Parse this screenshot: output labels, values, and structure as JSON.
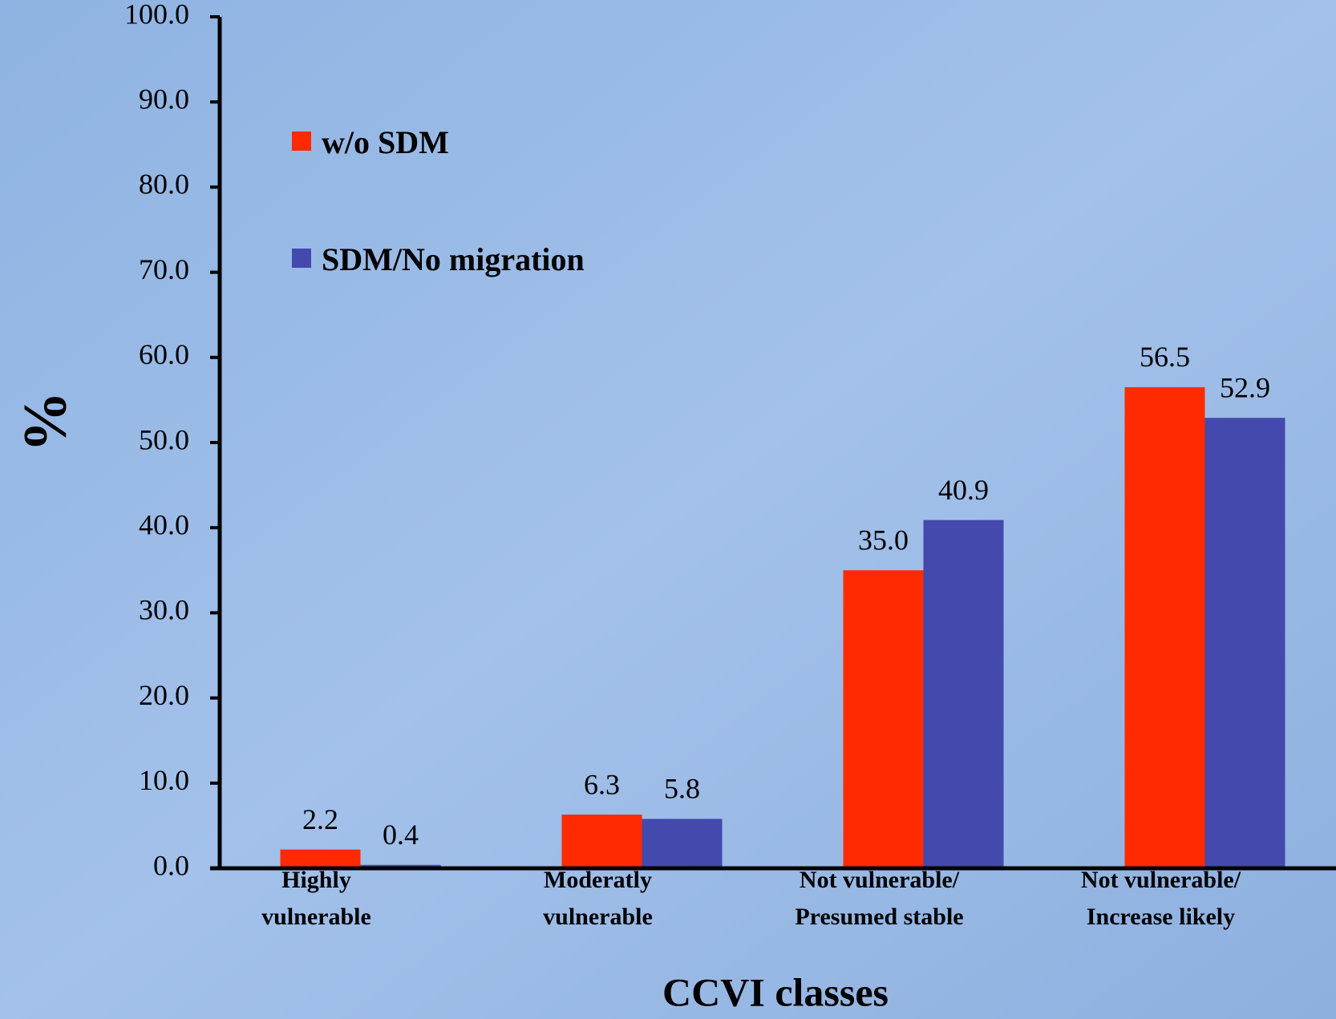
{
  "chart_data": {
    "type": "bar",
    "categories": [
      [
        "Highly",
        "vulnerable"
      ],
      [
        "Moderatly",
        "vulnerable"
      ],
      [
        "Not vulnerable/",
        "Presumed stable"
      ],
      [
        "Not vulnerable/",
        "Increase likely"
      ]
    ],
    "series": [
      {
        "name": "w/o SDM",
        "color": "#ff2a00",
        "values": [
          2.2,
          6.3,
          35.0,
          56.5
        ],
        "value_labels": [
          "2.2",
          "6.3",
          "35.0",
          "56.5"
        ]
      },
      {
        "name": "SDM/No migration",
        "color": "#4349ad",
        "values": [
          0.4,
          5.8,
          40.9,
          52.9
        ],
        "value_labels": [
          "0.4",
          "5.8",
          "40.9",
          "52.9"
        ]
      }
    ],
    "xlabel": "CCVI classes",
    "ylabel": "%",
    "ylim": [
      0,
      100
    ],
    "yticks": [
      {
        "value": 0,
        "label": "0.0"
      },
      {
        "value": 10,
        "label": "10.0"
      },
      {
        "value": 20,
        "label": "20.0"
      },
      {
        "value": 30,
        "label": "30.0"
      },
      {
        "value": 40,
        "label": "40.0"
      },
      {
        "value": 50,
        "label": "50.0"
      },
      {
        "value": 60,
        "label": "60.0"
      },
      {
        "value": 70,
        "label": "70.0"
      },
      {
        "value": 80,
        "label": "80.0"
      },
      {
        "value": 90,
        "label": "90.0"
      },
      {
        "value": 100,
        "label": "100.0"
      }
    ],
    "grid": false,
    "legend": "upper left"
  }
}
